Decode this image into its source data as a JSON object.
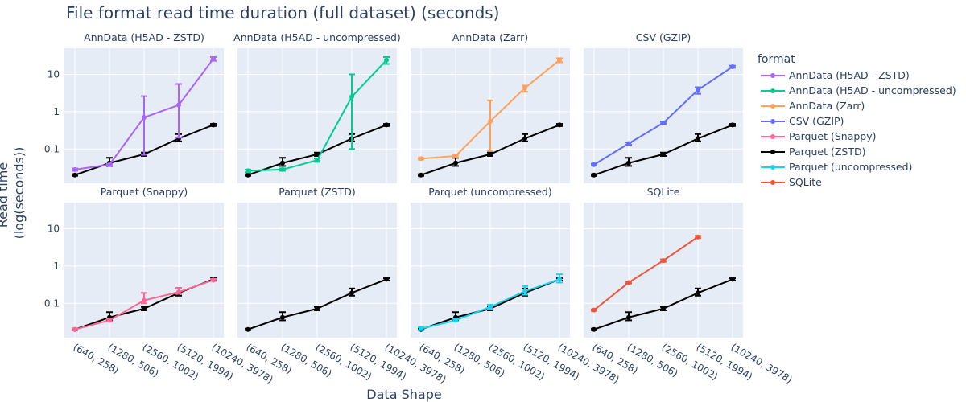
{
  "chart_data": {
    "type": "line",
    "title": "File format read time duration (full dataset) (seconds)",
    "xlabel": "Data Shape",
    "ylabel": "Read time (log(seconds))",
    "yscale": "log",
    "ylim": [
      0.012,
      50
    ],
    "yticks": [
      {
        "value": 0.1,
        "label": "0.1"
      },
      {
        "value": 1,
        "label": "1"
      },
      {
        "value": 10,
        "label": "10"
      }
    ],
    "categories": [
      "(640, 258)",
      "(1280, 506)",
      "(2560, 1002)",
      "(5120, 1994)",
      "(10240, 3978)"
    ],
    "grid": true,
    "legend": {
      "title": "format",
      "position": "right"
    },
    "baseline_series": "Parquet (ZSTD)",
    "series": [
      {
        "name": "AnnData (H5AD - ZSTD)",
        "color": "#ab63fa",
        "values": [
          0.028,
          0.038,
          0.7,
          1.5,
          26
        ],
        "err_low": [
          0.026,
          0.036,
          0.07,
          0.2,
          23
        ],
        "err_high": [
          0.03,
          0.04,
          2.6,
          5.5,
          29
        ]
      },
      {
        "name": "AnnData (H5AD - uncompressed)",
        "color": "#00cc96",
        "values": [
          0.026,
          0.028,
          0.05,
          2.5,
          24
        ],
        "err_low": [
          0.024,
          0.026,
          0.045,
          0.1,
          19
        ],
        "err_high": [
          0.028,
          0.03,
          0.055,
          10,
          29
        ]
      },
      {
        "name": "AnnData (Zarr)",
        "color": "#ffa15a",
        "values": [
          0.055,
          0.065,
          0.55,
          4.3,
          24
        ],
        "err_low": [
          0.052,
          0.06,
          0.09,
          3.4,
          21
        ],
        "err_high": [
          0.058,
          0.07,
          2.0,
          5.0,
          27
        ]
      },
      {
        "name": "CSV (GZIP)",
        "color": "#636efa",
        "values": [
          0.038,
          0.14,
          0.5,
          3.8,
          16
        ],
        "err_low": [
          0.036,
          0.13,
          0.47,
          3.0,
          15
        ],
        "err_high": [
          0.04,
          0.15,
          0.53,
          4.5,
          17
        ]
      },
      {
        "name": "Parquet (Snappy)",
        "color": "#ff6692",
        "values": [
          0.02,
          0.035,
          0.12,
          0.2,
          0.42
        ],
        "err_low": [
          0.019,
          0.033,
          0.1,
          0.18,
          0.4
        ],
        "err_high": [
          0.021,
          0.038,
          0.19,
          0.26,
          0.45
        ]
      },
      {
        "name": "Parquet (ZSTD)",
        "color": "#000000",
        "values": [
          0.02,
          0.042,
          0.072,
          0.19,
          0.44
        ],
        "err_low": [
          0.019,
          0.035,
          0.065,
          0.16,
          0.41
        ],
        "err_high": [
          0.021,
          0.058,
          0.08,
          0.25,
          0.47
        ]
      },
      {
        "name": "Parquet (uncompressed)",
        "color": "#19d3f3",
        "values": [
          0.021,
          0.035,
          0.08,
          0.21,
          0.44
        ],
        "err_low": [
          0.019,
          0.033,
          0.07,
          0.17,
          0.36
        ],
        "err_high": [
          0.023,
          0.038,
          0.092,
          0.29,
          0.6
        ]
      },
      {
        "name": "SQLite",
        "color": "#ef553b",
        "values": [
          0.066,
          0.36,
          1.4,
          6.0,
          null
        ],
        "err_low": [
          0.063,
          0.34,
          1.3,
          5.6,
          null
        ],
        "err_high": [
          0.069,
          0.38,
          1.5,
          6.4,
          null
        ]
      }
    ],
    "facets": [
      {
        "title": "AnnData (H5AD - ZSTD)",
        "series": [
          "Parquet (ZSTD)",
          "AnnData (H5AD - ZSTD)"
        ]
      },
      {
        "title": "AnnData (H5AD - uncompressed)",
        "series": [
          "Parquet (ZSTD)",
          "AnnData (H5AD - uncompressed)"
        ]
      },
      {
        "title": "AnnData (Zarr)",
        "series": [
          "Parquet (ZSTD)",
          "AnnData (Zarr)"
        ]
      },
      {
        "title": "CSV (GZIP)",
        "series": [
          "Parquet (ZSTD)",
          "CSV (GZIP)"
        ]
      },
      {
        "title": "Parquet (Snappy)",
        "series": [
          "Parquet (ZSTD)",
          "Parquet (Snappy)"
        ]
      },
      {
        "title": "Parquet (ZSTD)",
        "series": [
          "Parquet (ZSTD)"
        ]
      },
      {
        "title": "Parquet (uncompressed)",
        "series": [
          "Parquet (ZSTD)",
          "Parquet (uncompressed)"
        ]
      },
      {
        "title": "SQLite",
        "series": [
          "Parquet (ZSTD)",
          "SQLite"
        ]
      }
    ]
  }
}
